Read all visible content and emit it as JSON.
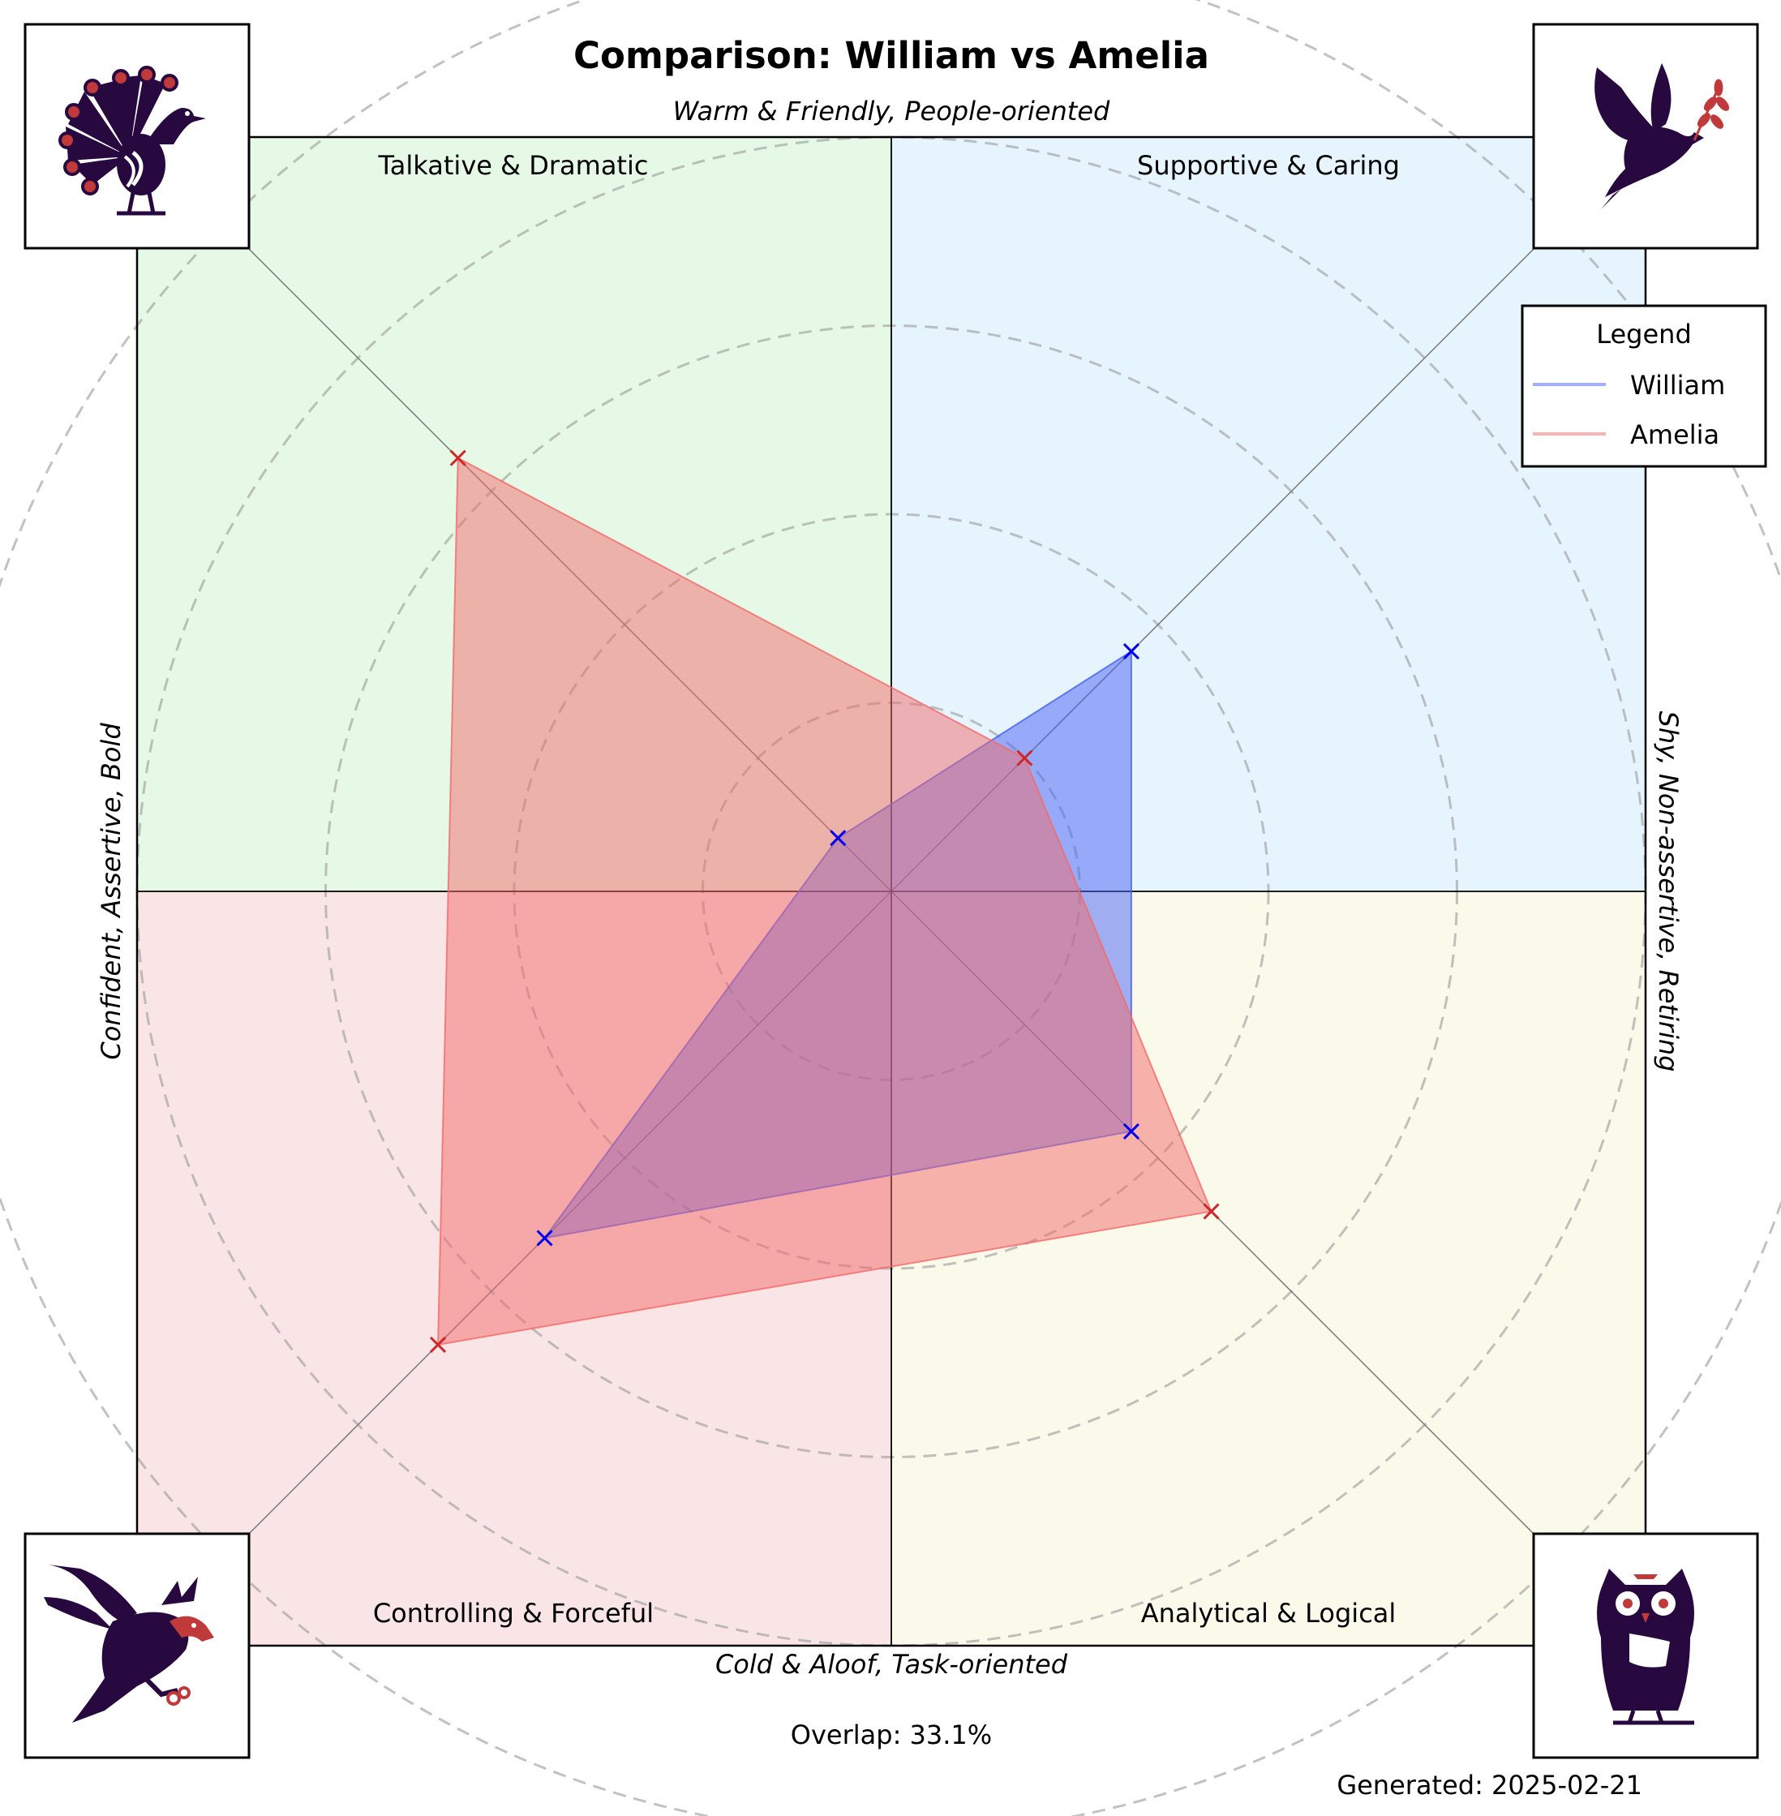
{
  "chart_data": {
    "type": "radar",
    "title": "Comparison: William vs Amelia",
    "axis_labels": {
      "top": "Warm & Friendly, People-oriented",
      "bottom": "Cold & Aloof, Task-oriented",
      "left": "Confident, Assertive, Bold",
      "right": "Shy, Non-assertive, Retiring"
    },
    "quadrants": [
      {
        "name": "Talkative & Dramatic",
        "icon": "peacock-icon",
        "color": "#e6f9e6"
      },
      {
        "name": "Supportive & Caring",
        "icon": "dove-icon",
        "color": "#e6f4fd"
      },
      {
        "name": "Controlling & Forceful",
        "icon": "eagle-icon",
        "color": "#fae5e6"
      },
      {
        "name": "Analytical & Logical",
        "icon": "owl-icon",
        "color": "#fafaeb"
      }
    ],
    "axes": [
      "Talkative & Dramatic",
      "Supportive & Caring",
      "Analytical & Logical",
      "Controlling & Forceful"
    ],
    "rmax": 100,
    "ring_step": 20,
    "series": [
      {
        "name": "William",
        "values": [
          8,
          36,
          36,
          52
        ],
        "color": "#4560f5"
      },
      {
        "name": "Amelia",
        "values": [
          65,
          20,
          48,
          68
        ],
        "color": "#f26a6a"
      }
    ],
    "legend_title": "Legend",
    "legend_position": "top-right",
    "overlap_text": "Overlap: 33.1%",
    "generated_text": "Generated: 2025-02-21"
  }
}
